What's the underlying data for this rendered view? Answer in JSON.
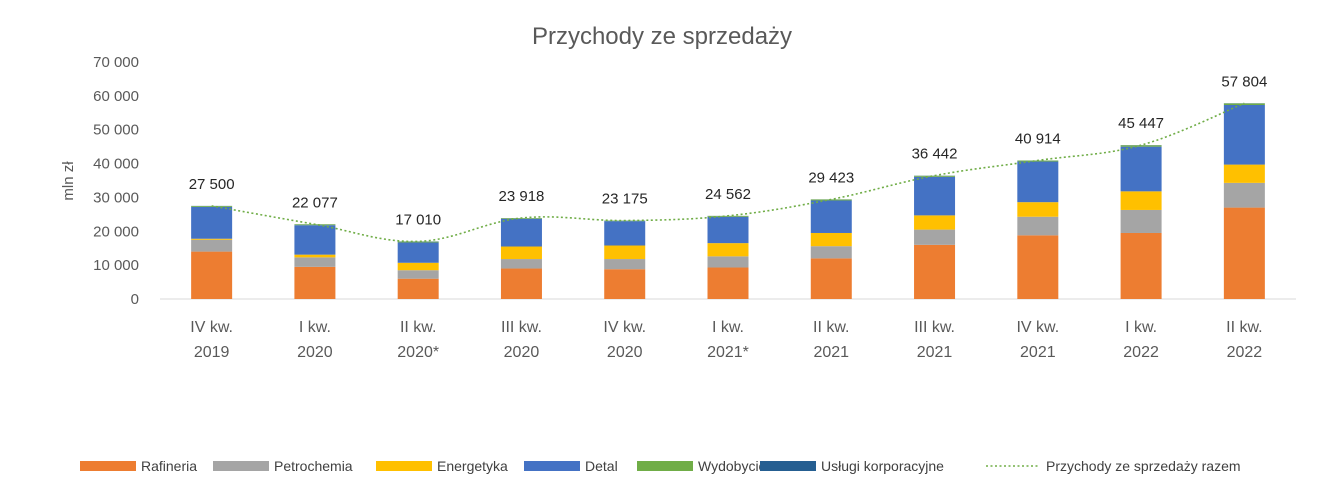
{
  "chart_data": {
    "type": "bar",
    "stacked": true,
    "title": "Przychody ze sprzedaży",
    "ylabel": "mln zł",
    "xlabel": "",
    "ylim": [
      0,
      70000
    ],
    "yticks": [
      0,
      10000,
      20000,
      30000,
      40000,
      50000,
      60000,
      70000
    ],
    "ytick_labels": [
      "0",
      "10 000",
      "20 000",
      "30 000",
      "40 000",
      "50 000",
      "60 000",
      "70 000"
    ],
    "grid": false,
    "legend_position": "bottom",
    "categories": [
      [
        "IV kw.",
        "2019"
      ],
      [
        "I kw.",
        "2020"
      ],
      [
        "II kw.",
        "2020*"
      ],
      [
        "III kw.",
        "2020"
      ],
      [
        "IV kw.",
        "2020"
      ],
      [
        "I kw.",
        "2021*"
      ],
      [
        "II kw.",
        "2021"
      ],
      [
        "III kw.",
        "2021"
      ],
      [
        "IV kw.",
        "2021"
      ],
      [
        "I kw.",
        "2022"
      ],
      [
        "II kw.",
        "2022"
      ]
    ],
    "series": [
      {
        "name": "Rafineria",
        "color": "#ED7D31",
        "values": [
          14000,
          9500,
          6000,
          9000,
          8800,
          9300,
          12000,
          16000,
          18800,
          19500,
          27000
        ]
      },
      {
        "name": "Petrochemia",
        "color": "#A5A5A5",
        "values": [
          3500,
          2800,
          2500,
          2800,
          3000,
          3300,
          3600,
          4500,
          5500,
          6800,
          7300
        ]
      },
      {
        "name": "Energetyka",
        "color": "#FFC000",
        "values": [
          300,
          800,
          2200,
          3700,
          4000,
          3900,
          3900,
          4200,
          4300,
          5500,
          5400
        ]
      },
      {
        "name": "Detal",
        "color": "#4472C4",
        "values": [
          9400,
          8700,
          6000,
          8200,
          7200,
          7800,
          9600,
          11400,
          12000,
          13200,
          17600
        ]
      },
      {
        "name": "Wydobycie",
        "color": "#70AD47",
        "values": [
          250,
          250,
          250,
          200,
          150,
          250,
          300,
          300,
          300,
          400,
          450
        ]
      },
      {
        "name": "Usługi korporacyjne",
        "color": "#255E91",
        "values": [
          50,
          27,
          60,
          18,
          25,
          12,
          23,
          42,
          14,
          47,
          54
        ]
      }
    ],
    "total": {
      "name": "Przychody ze sprzedaży razem",
      "color": "#70AD47",
      "style": "dotted-line",
      "values": [
        27500,
        22077,
        17010,
        23918,
        23175,
        24562,
        29423,
        36442,
        40914,
        45447,
        57804
      ],
      "labels": [
        "27 500",
        "22 077",
        "17 010",
        "23 918",
        "23 175",
        "24 562",
        "29 423",
        "36 442",
        "40 914",
        "45 447",
        "57 804"
      ]
    }
  }
}
